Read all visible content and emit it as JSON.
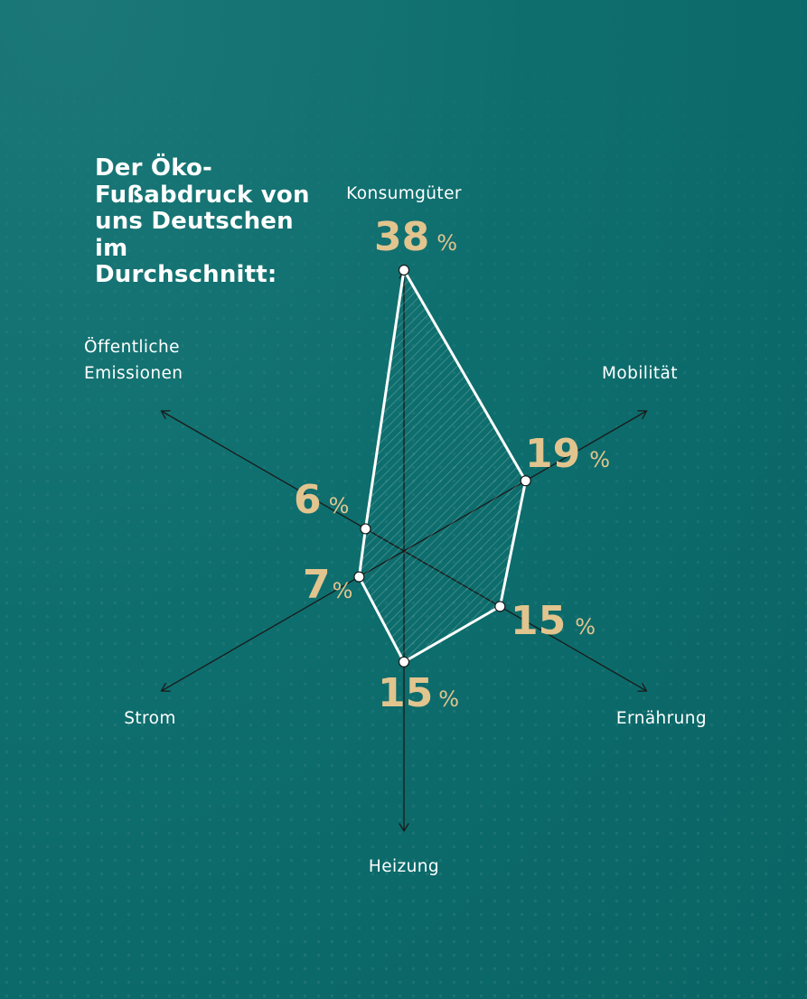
{
  "title": "Der Öko-Fußabdruck von uns Deutschen im Durchschnitt:",
  "chart_data": {
    "type": "radar",
    "title": "Der Öko-Fußabdruck von uns Deutschen im Durchschnitt:",
    "unit": "%",
    "categories": [
      "Konsumgüter",
      "Mobilität",
      "Ernährung",
      "Heizung",
      "Strom",
      "Öffentliche Emissionen"
    ],
    "values": [
      38,
      19,
      15,
      15,
      7,
      6
    ],
    "value_labels": [
      "38",
      "19",
      "15",
      "15",
      "7",
      "6"
    ]
  },
  "colors": {
    "background": "#0e6e6e",
    "value_text": "#e2c48e",
    "polygon_stroke": "#ffffff",
    "axis": "#1a1a1a"
  }
}
